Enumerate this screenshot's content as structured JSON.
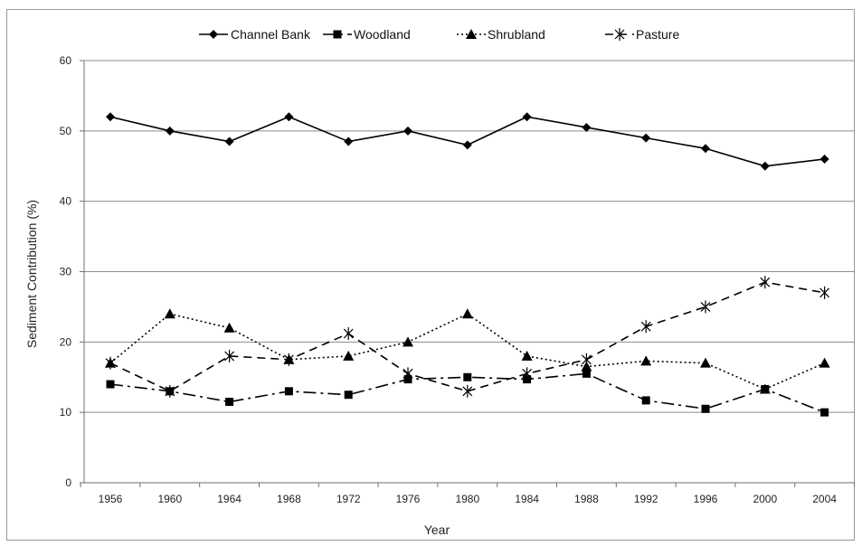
{
  "chart_data": {
    "type": "line",
    "title": "",
    "xlabel": "Year",
    "ylabel": "Sediment Contribution (%)",
    "ylim": [
      0,
      60
    ],
    "yticks": [
      0,
      10,
      20,
      30,
      40,
      50,
      60
    ],
    "grid": "horizontal",
    "legend": "top",
    "categories": [
      "1956",
      "1960",
      "1964",
      "1968",
      "1972",
      "1976",
      "1980",
      "1984",
      "1988",
      "1992",
      "1996",
      "2000",
      "2004"
    ],
    "series": [
      {
        "name": "Channel Bank",
        "marker": "diamond",
        "dash": "solid",
        "color": "#000000",
        "values": [
          52,
          50,
          48.5,
          52,
          48.5,
          50,
          48,
          52,
          50.5,
          49,
          47.5,
          45,
          46
        ]
      },
      {
        "name": "Woodland",
        "marker": "square",
        "dash": "long-dash-dot",
        "color": "#000000",
        "values": [
          14,
          13,
          11.5,
          13,
          12.5,
          14.7,
          15,
          14.7,
          15.5,
          11.7,
          10.5,
          13.3,
          10
        ]
      },
      {
        "name": "Shrubland",
        "marker": "triangle",
        "dash": "dotted",
        "color": "#000000",
        "values": [
          17,
          24,
          22,
          17.5,
          18,
          20,
          24,
          18,
          16.5,
          17.3,
          17,
          13.3,
          17
        ]
      },
      {
        "name": "Pasture",
        "marker": "asterisk",
        "dash": "dashed",
        "color": "#000000",
        "values": [
          17,
          13,
          18,
          17.5,
          21.2,
          15.5,
          13,
          15.5,
          17.5,
          22.2,
          25,
          28.5,
          27
        ]
      }
    ]
  }
}
